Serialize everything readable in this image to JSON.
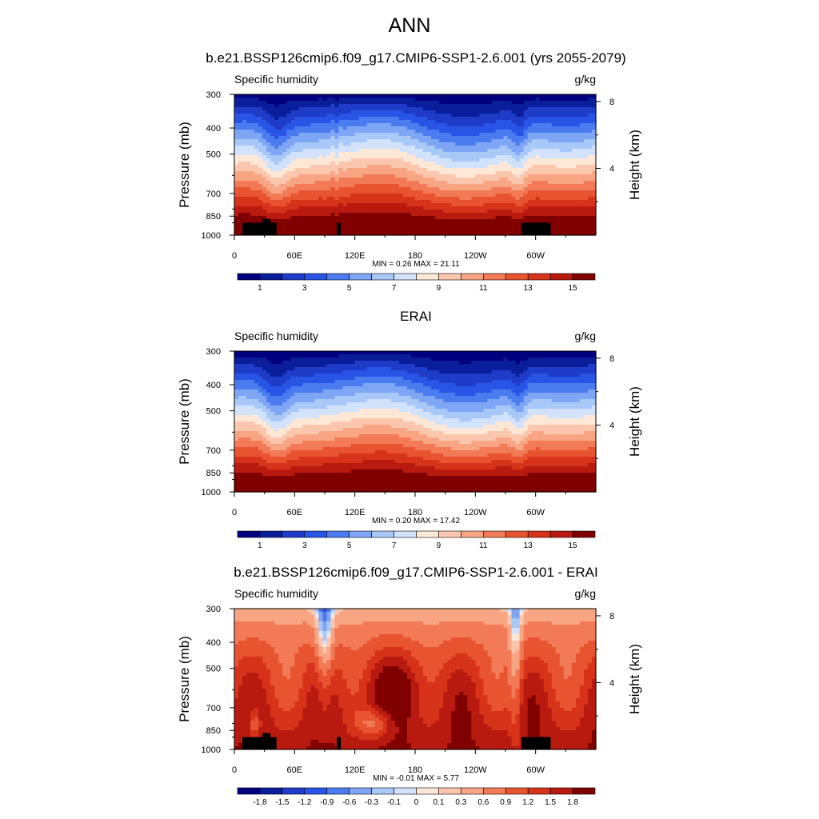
{
  "page": {
    "title": "ANN"
  },
  "colorbars": {
    "absolute": {
      "colors": [
        "#00007f",
        "#0a1e9c",
        "#1e3cc8",
        "#2855e6",
        "#4a7cf0",
        "#7ea6f5",
        "#a8c8f8",
        "#d2e2fb",
        "#fde8d8",
        "#fbc6ae",
        "#f8a584",
        "#f27a56",
        "#e85430",
        "#d6331a",
        "#b91a10",
        "#800000"
      ],
      "labels": [
        "1",
        "3",
        "5",
        "7",
        "9",
        "11",
        "13",
        "15"
      ],
      "label_positions": [
        1,
        3,
        5,
        7,
        9,
        11,
        13,
        15
      ]
    },
    "difference": {
      "colors": [
        "#00007f",
        "#0a1e9c",
        "#1e3cc8",
        "#2855e6",
        "#4a7cf0",
        "#7ea6f5",
        "#a8c8f8",
        "#d2e2fb",
        "#fde8d8",
        "#fbc6ae",
        "#f8a584",
        "#f27a56",
        "#e85430",
        "#d6331a",
        "#b91a10",
        "#800000"
      ],
      "labels": [
        "-1.8",
        "-1.5",
        "-1.2",
        "-0.9",
        "-0.6",
        "-0.3",
        "-0.1",
        "0",
        "0.1",
        "0.3",
        "0.6",
        "0.9",
        "1.2",
        "1.5",
        "1.8"
      ],
      "label_positions": [
        1,
        2,
        3,
        4,
        5,
        6,
        7,
        8,
        9,
        10,
        11,
        12,
        13,
        14,
        15
      ]
    }
  },
  "chart_data": [
    {
      "type": "heatmap",
      "title": "b.e21.BSSP126cmip6.f09_g17.CMIP6-SSP1-2.6.001 (yrs 2055-2079)",
      "left_label": "Specific humidity",
      "right_label": "g/kg",
      "ylabel": "Pressure (mb)",
      "ylabel_right": "Height (km)",
      "x_ticks": [
        "0",
        "60E",
        "120E",
        "180",
        "120W",
        "60W"
      ],
      "x_tick_lon": [
        0,
        60,
        120,
        180,
        240,
        300
      ],
      "xlim": [
        0,
        360
      ],
      "y_ticks": [
        "300",
        "400",
        "500",
        "700",
        "850",
        "1000"
      ],
      "y_tick_p": [
        300,
        400,
        500,
        700,
        850,
        1000
      ],
      "ylim": [
        300,
        1000
      ],
      "y_right_ticks": [
        "8",
        "4"
      ],
      "y_right_tick_km": [
        8,
        4
      ],
      "min_max_text": "MIN =   0.26  MAX =  21.11",
      "min": 0.26,
      "max": 21.11,
      "field": "abs",
      "topography": true,
      "colorbar": "absolute"
    },
    {
      "type": "heatmap",
      "title": "ERAI",
      "left_label": "Specific humidity",
      "right_label": "g/kg",
      "ylabel": "Pressure (mb)",
      "ylabel_right": "Height (km)",
      "x_ticks": [
        "0",
        "60E",
        "120E",
        "180",
        "120W",
        "60W"
      ],
      "x_tick_lon": [
        0,
        60,
        120,
        180,
        240,
        300
      ],
      "xlim": [
        0,
        360
      ],
      "y_ticks": [
        "300",
        "400",
        "500",
        "700",
        "850",
        "1000"
      ],
      "y_tick_p": [
        300,
        400,
        500,
        700,
        850,
        1000
      ],
      "ylim": [
        300,
        1000
      ],
      "y_right_ticks": [
        "8",
        "4"
      ],
      "y_right_tick_km": [
        8,
        4
      ],
      "min_max_text": "MIN =   0.20  MAX =  17.42",
      "min": 0.2,
      "max": 17.42,
      "field": "abs",
      "topography": false,
      "colorbar": "absolute"
    },
    {
      "type": "heatmap",
      "title": "b.e21.BSSP126cmip6.f09_g17.CMIP6-SSP1-2.6.001 - ERAI",
      "left_label": "Specific humidity",
      "right_label": "g/kg",
      "ylabel": "Pressure (mb)",
      "ylabel_right": "Height (km)",
      "x_ticks": [
        "0",
        "60E",
        "120E",
        "180",
        "120W",
        "60W"
      ],
      "x_tick_lon": [
        0,
        60,
        120,
        180,
        240,
        300
      ],
      "xlim": [
        0,
        360
      ],
      "y_ticks": [
        "300",
        "400",
        "500",
        "700",
        "850",
        "1000"
      ],
      "y_tick_p": [
        300,
        400,
        500,
        700,
        850,
        1000
      ],
      "ylim": [
        300,
        1000
      ],
      "y_right_ticks": [
        "8",
        "4"
      ],
      "y_right_tick_km": [
        8,
        4
      ],
      "min_max_text": "MIN =  -0.01  MAX =   5.77",
      "min": -0.01,
      "max": 5.77,
      "field": "diff",
      "topography": true,
      "colorbar": "difference"
    }
  ]
}
